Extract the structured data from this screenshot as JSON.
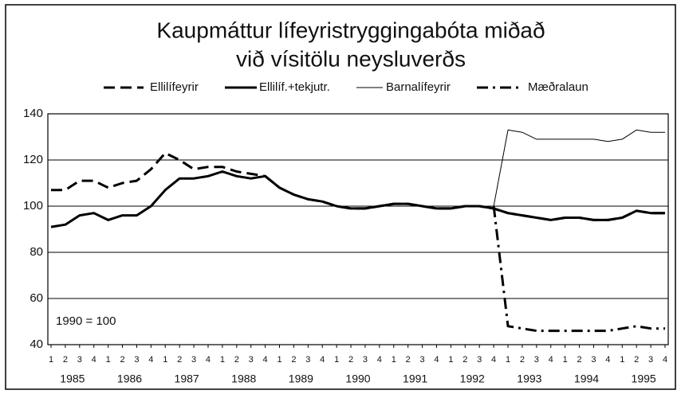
{
  "chart_data": {
    "type": "line",
    "title": [
      "Kaupmáttur lífeyristryggingabóta miðað",
      "við vísitölu neysluverðs"
    ],
    "annotation": "1990 = 100",
    "categories": [
      "1",
      "2",
      "3",
      "4",
      "1",
      "2",
      "3",
      "4",
      "1",
      "2",
      "3",
      "4",
      "1",
      "2",
      "3",
      "4",
      "1",
      "2",
      "3",
      "4",
      "1",
      "2",
      "3",
      "4",
      "1",
      "2",
      "3",
      "4",
      "1",
      "2",
      "3",
      "4",
      "1",
      "2",
      "3",
      "4",
      "1",
      "2",
      "3",
      "4",
      "1",
      "2",
      "3",
      "4"
    ],
    "years": [
      "1985",
      "1986",
      "1987",
      "1988",
      "1989",
      "1990",
      "1991",
      "1992",
      "1993",
      "1994",
      "1995"
    ],
    "ylim": [
      40,
      140
    ],
    "yticks": [
      40,
      60,
      80,
      100,
      120,
      140
    ],
    "grid": true,
    "legend": "top",
    "series": [
      {
        "name": "Ellilífeyrir",
        "color": "#000000",
        "dash": "dashed",
        "width": 3,
        "values": [
          107,
          107,
          111,
          111,
          108,
          110,
          111,
          116,
          123,
          120,
          116,
          117,
          117,
          115,
          114,
          113,
          108,
          105,
          103,
          102,
          100,
          99,
          99,
          100,
          101,
          101,
          100,
          99,
          99,
          100,
          100,
          99,
          97,
          96,
          95,
          94,
          95,
          95,
          94,
          94,
          95,
          98,
          97,
          97
        ]
      },
      {
        "name": "Ellilíf.+tekjutr.",
        "color": "#000000",
        "dash": "solid",
        "width": 3,
        "values": [
          91,
          92,
          96,
          97,
          94,
          96,
          96,
          100,
          107,
          112,
          112,
          113,
          115,
          113,
          112,
          113,
          108,
          105,
          103,
          102,
          100,
          99,
          99,
          100,
          101,
          101,
          100,
          99,
          99,
          100,
          100,
          99,
          97,
          96,
          95,
          94,
          95,
          95,
          94,
          94,
          95,
          98,
          97,
          97
        ]
      },
      {
        "name": "Barnalífeyrir",
        "color": "#000000",
        "dash": "solid",
        "width": 1,
        "values": [
          null,
          null,
          null,
          null,
          null,
          null,
          null,
          null,
          null,
          null,
          null,
          null,
          null,
          null,
          null,
          null,
          null,
          null,
          null,
          null,
          null,
          null,
          null,
          null,
          null,
          null,
          null,
          null,
          null,
          null,
          null,
          100,
          133,
          132,
          129,
          129,
          129,
          129,
          129,
          128,
          129,
          133,
          132,
          132
        ]
      },
      {
        "name": "Mæðralaun",
        "color": "#000000",
        "dash": "dashdot",
        "width": 3,
        "values": [
          null,
          null,
          null,
          null,
          null,
          null,
          null,
          null,
          null,
          null,
          null,
          null,
          null,
          null,
          null,
          null,
          null,
          null,
          null,
          null,
          null,
          null,
          null,
          null,
          null,
          null,
          null,
          null,
          null,
          null,
          null,
          100,
          48,
          47,
          46,
          46,
          46,
          46,
          46,
          46,
          47,
          48,
          47,
          47
        ]
      }
    ]
  }
}
